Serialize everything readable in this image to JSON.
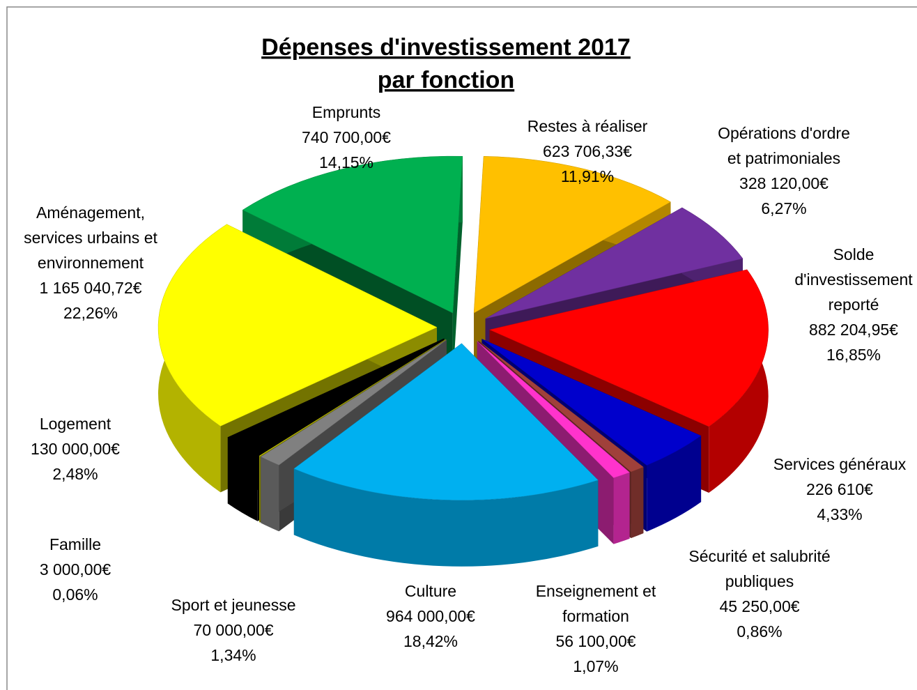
{
  "chart_data": {
    "type": "pie3d",
    "title": [
      "Dépenses d'investissement 2017",
      "par fonction"
    ],
    "categories": [
      [
        "Restes à réaliser"
      ],
      [
        "Opérations d'ordre",
        "et patrimoniales"
      ],
      [
        "Solde",
        "d'investissement",
        "reporté"
      ],
      [
        "Services généraux"
      ],
      [
        "Sécurité et salubrité",
        "publiques"
      ],
      [
        "Enseignement et",
        "formation"
      ],
      [
        "Culture"
      ],
      [
        "Sport et jeunesse"
      ],
      [
        "Famille"
      ],
      [
        "Logement"
      ],
      [
        "Aménagement,",
        "services urbains et",
        "environnement"
      ],
      [
        "Emprunts"
      ]
    ],
    "values": [
      623706.33,
      328120,
      882204.95,
      226610,
      45250,
      56100,
      964000,
      70000,
      3000,
      130000,
      1165040.72,
      740700
    ],
    "value_labels": [
      "623 706,33€",
      "328 120,00€",
      "882 204,95€",
      "226 610€",
      "45 250,00€",
      "56 100,00€",
      "964 000,00€",
      "70 000,00€",
      "3 000,00€",
      "130 000,00€",
      "1 165 040,72€",
      "740 700,00€"
    ],
    "percents": [
      11.91,
      6.27,
      16.85,
      4.33,
      0.86,
      1.07,
      18.42,
      1.34,
      0.06,
      2.48,
      22.26,
      14.15
    ],
    "percent_labels": [
      "11,91%",
      "6,27%",
      "16,85%",
      "4,33%",
      "0,86%",
      "1,07%",
      "18,42%",
      "1,34%",
      "0,06%",
      "2,48%",
      "22,26%",
      "14,15%"
    ],
    "colors": [
      "#ffc000",
      "#7030a0",
      "#ff0000",
      "#0000cc",
      "#a0403a",
      "#ff33cc",
      "#00b0f0",
      "#808080",
      "#c8c800",
      "#000000",
      "#ffff00",
      "#00b050"
    ]
  }
}
